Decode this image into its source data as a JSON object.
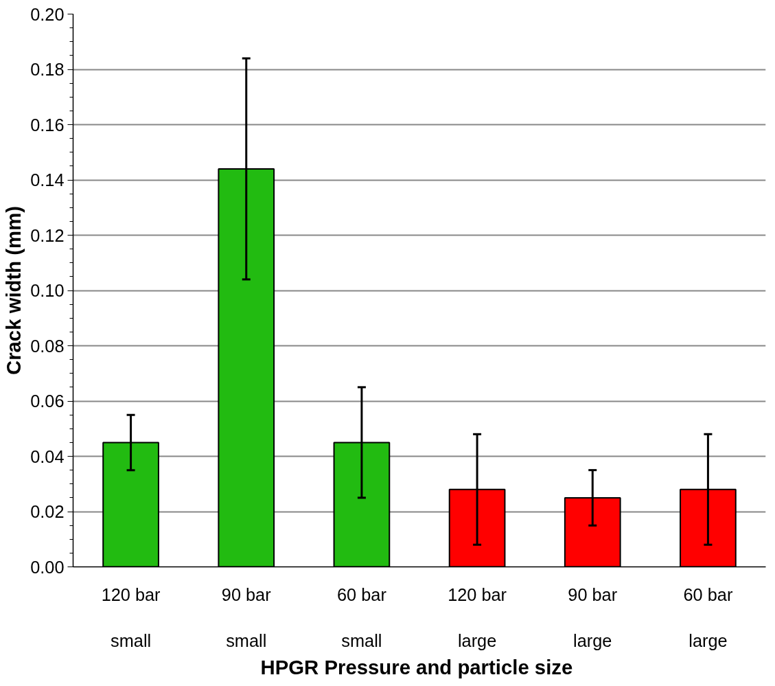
{
  "chart_data": {
    "type": "bar",
    "xlabel": "HPGR Pressure and  particle size",
    "ylabel": "Crack width (mm)",
    "categories": [
      "120 bar\n\nsmall",
      "90 bar\n\nsmall",
      "60 bar\n\nsmall",
      "120 bar\n\nlarge",
      "90 bar\n\nlarge",
      "60 bar\n\nlarge"
    ],
    "values": [
      0.045,
      0.144,
      0.045,
      0.028,
      0.025,
      0.028
    ],
    "colors": [
      "#22bb11",
      "#22bb11",
      "#22bb11",
      "#ff0000",
      "#ff0000",
      "#ff0000"
    ],
    "errors": [
      [
        0.035,
        0.055
      ],
      [
        0.104,
        0.184
      ],
      [
        0.025,
        0.065
      ],
      [
        0.008,
        0.048
      ],
      [
        0.015,
        0.035
      ],
      [
        0.008,
        0.048
      ]
    ],
    "ylim": [
      0,
      0.2
    ],
    "yticks": [
      {
        "value": 0,
        "label": "0.00"
      },
      0.02,
      0.04,
      0.06,
      0.08,
      {
        "value": 0.1,
        "label": "0.10"
      },
      0.12,
      0.14,
      0.16,
      0.18,
      {
        "value": 0.2,
        "label": "0.20"
      }
    ],
    "grid": "y"
  }
}
